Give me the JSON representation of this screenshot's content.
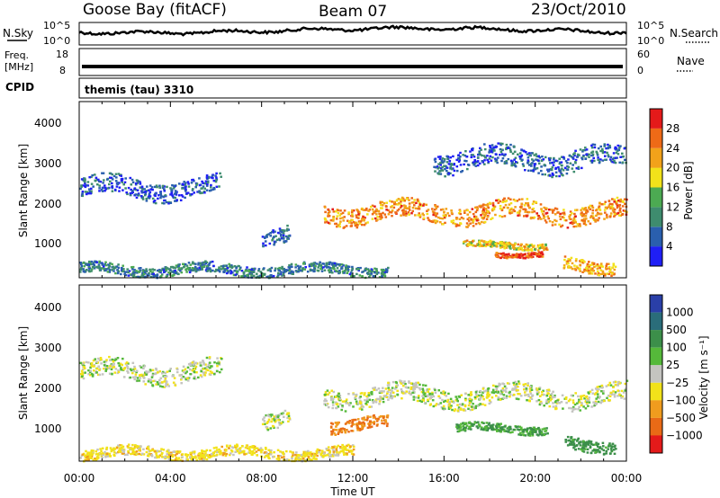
{
  "header": {
    "station": "Goose Bay (fitACF)",
    "beam": "Beam 07",
    "date": "23/Oct/2010"
  },
  "strips": {
    "nsky": {
      "label": "N.Sky",
      "ticks": [
        "10^5",
        "10^0"
      ]
    },
    "nsearch": {
      "label": "N.Search",
      "ticks": [
        "10^5",
        "10^0"
      ]
    },
    "freq": {
      "label_line1": "Freq.",
      "label_line2": "[MHz]",
      "ticks": [
        "18",
        "8"
      ]
    },
    "nave": {
      "label": "Nave",
      "ticks": [
        "60",
        "0"
      ]
    },
    "cpid": {
      "label": "CPID",
      "text": "themis (tau) 3310"
    }
  },
  "x_ticks": [
    "00:00",
    "04:00",
    "08:00",
    "12:00",
    "16:00",
    "20:00",
    "00:00"
  ],
  "x_label": "Time UT",
  "y_label": "Slant Range [km]",
  "y_ticks": [
    "1000",
    "2000",
    "3000",
    "4000"
  ],
  "power_colorbar": {
    "title": "Power [dB]",
    "labels": [
      "4",
      "8",
      "12",
      "16",
      "20",
      "24",
      "28"
    ],
    "colors": [
      "#1f1ff5",
      "#2a5fae",
      "#3e8c6e",
      "#4caa52",
      "#f2e21a",
      "#f2a21a",
      "#ee6a17",
      "#e41a1a"
    ]
  },
  "velocity_colorbar": {
    "title": "Velocity [m s⁻¹]",
    "labels": [
      "1000",
      "500",
      "100",
      "25",
      "−25",
      "−100",
      "−500",
      "−1000"
    ],
    "colors": [
      "#2a3fa8",
      "#2a6d7a",
      "#3c8f4a",
      "#55b93a",
      "#c4c4c0",
      "#f2e21a",
      "#f09c1e",
      "#e96a16",
      "#e41a1a"
    ]
  },
  "chart_data": [
    {
      "type": "heatmap",
      "panel": "power",
      "xlabel": "Time UT",
      "ylabel": "Slant Range [km]",
      "x_ticks": [
        "00:00",
        "04:00",
        "08:00",
        "12:00",
        "16:00",
        "20:00",
        "00:00"
      ],
      "x_range_hours": [
        0,
        24
      ],
      "ylim": [
        180,
        4500
      ],
      "colorbar": "Power [dB]",
      "colorbar_range": [
        0,
        30
      ],
      "regions": [
        {
          "t0": 0.0,
          "t1": 6.2,
          "r_center": 2400,
          "r_width": 450,
          "value_db": 5
        },
        {
          "t0": 8.0,
          "t1": 9.2,
          "r_center": 1250,
          "r_width": 400,
          "value_db": 6
        },
        {
          "t0": 10.7,
          "t1": 24.0,
          "r_center": 1800,
          "r_width": 450,
          "value_db": 22
        },
        {
          "t0": 15.5,
          "t1": 24.0,
          "r_center": 3100,
          "r_width": 500,
          "value_db": 6
        },
        {
          "t0": 16.8,
          "t1": 20.5,
          "r_center": 1000,
          "r_width": 150,
          "value_db": 18
        },
        {
          "t0": 18.2,
          "t1": 20.3,
          "r_center": 780,
          "r_width": 120,
          "value_db": 26
        },
        {
          "t0": 21.2,
          "t1": 23.5,
          "r_center": 500,
          "r_width": 300,
          "value_db": 20
        },
        {
          "t0": 0.0,
          "t1": 13.5,
          "r_center": 400,
          "r_width": 250,
          "value_db": 8
        }
      ]
    },
    {
      "type": "heatmap",
      "panel": "velocity",
      "xlabel": "Time UT",
      "ylabel": "Slant Range [km]",
      "x_ticks": [
        "00:00",
        "04:00",
        "08:00",
        "12:00",
        "16:00",
        "20:00",
        "00:00"
      ],
      "x_range_hours": [
        0,
        24
      ],
      "ylim": [
        180,
        4500
      ],
      "colorbar": "Velocity [m s⁻¹]",
      "colorbar_range": [
        -1000,
        1000
      ],
      "regions": [
        {
          "t0": 0.0,
          "t1": 6.2,
          "r_center": 2400,
          "r_width": 450,
          "value_ms": 0
        },
        {
          "t0": 8.0,
          "t1": 9.2,
          "r_center": 1250,
          "r_width": 400,
          "value_ms": 0
        },
        {
          "t0": 10.7,
          "t1": 24.0,
          "r_center": 1800,
          "r_width": 450,
          "value_ms": 0
        },
        {
          "t0": 11.0,
          "t1": 13.5,
          "r_center": 1100,
          "r_width": 300,
          "value_ms": -300
        },
        {
          "t0": 16.5,
          "t1": 20.5,
          "r_center": 1000,
          "r_width": 200,
          "value_ms": 100
        },
        {
          "t0": 0.0,
          "t1": 12.0,
          "r_center": 400,
          "r_width": 250,
          "value_ms": -60
        },
        {
          "t0": 21.2,
          "t1": 23.5,
          "r_center": 600,
          "r_width": 300,
          "value_ms": 150
        }
      ]
    }
  ]
}
